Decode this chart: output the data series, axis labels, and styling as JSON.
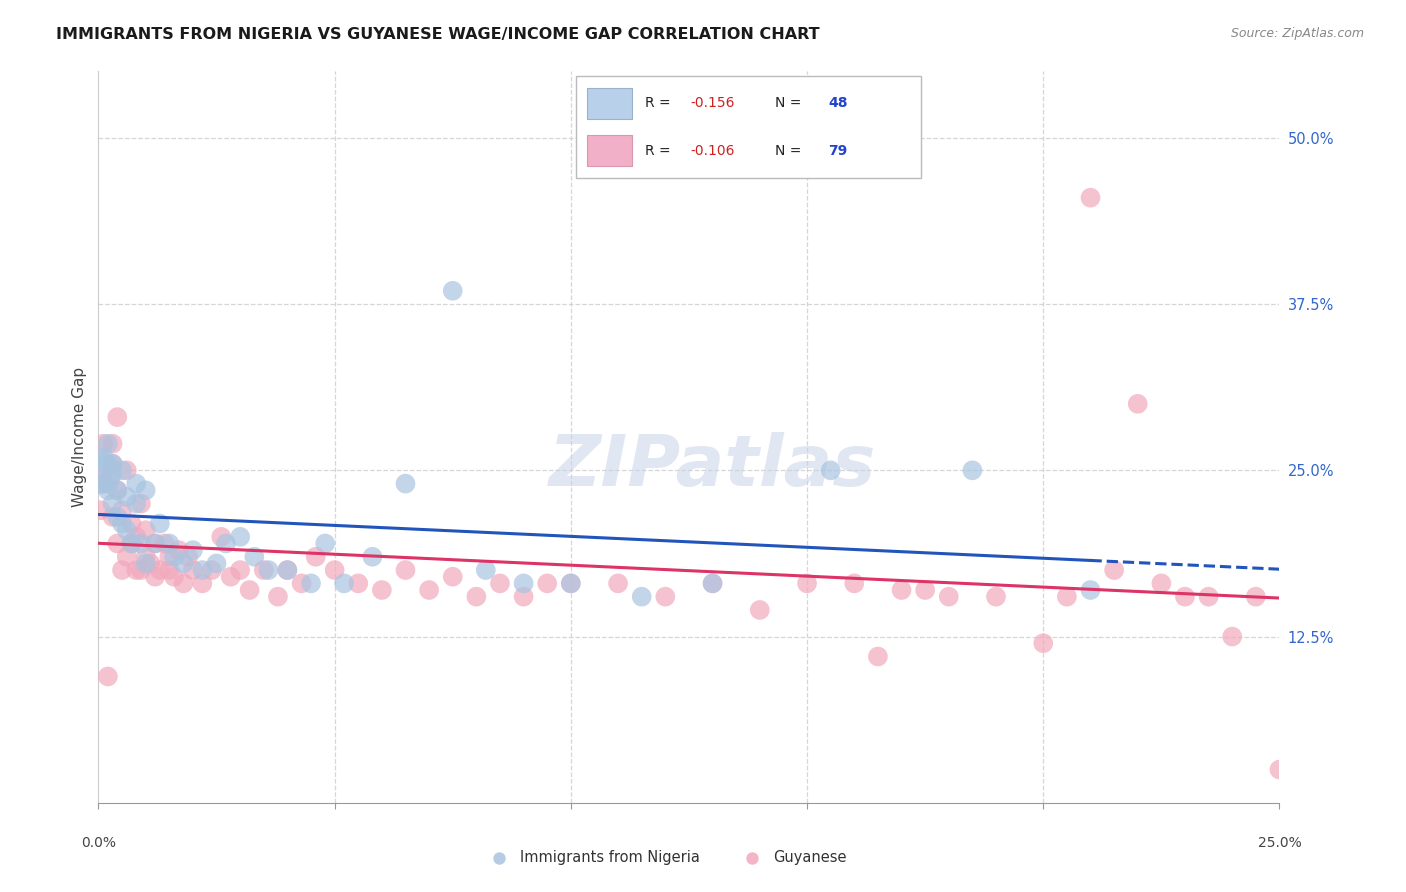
{
  "title": "IMMIGRANTS FROM NIGERIA VS GUYANESE WAGE/INCOME GAP CORRELATION CHART",
  "source": "Source: ZipAtlas.com",
  "ylabel": "Wage/Income Gap",
  "y_tick_positions": [
    0.125,
    0.25,
    0.375,
    0.5
  ],
  "y_tick_labels": [
    "12.5%",
    "25.0%",
    "37.5%",
    "50.0%"
  ],
  "xlim": [
    0,
    0.25
  ],
  "ylim": [
    0,
    0.55
  ],
  "blue_fill": "#a8c4e0",
  "pink_fill": "#f2a8bc",
  "blue_line": "#2255bb",
  "pink_line": "#dd3366",
  "R_nigeria": -0.156,
  "N_nigeria": 48,
  "R_guyanese": -0.106,
  "N_guyanese": 79,
  "legend_label_nigeria": "Immigrants from Nigeria",
  "legend_label_guyanese": "Guyanese",
  "watermark_text": "ZIPatlas",
  "nigeria_x": [
    0.0005,
    0.001,
    0.001,
    0.0015,
    0.002,
    0.002,
    0.0025,
    0.003,
    0.003,
    0.004,
    0.004,
    0.005,
    0.005,
    0.006,
    0.006,
    0.007,
    0.008,
    0.008,
    0.009,
    0.01,
    0.01,
    0.012,
    0.013,
    0.015,
    0.016,
    0.018,
    0.02,
    0.022,
    0.025,
    0.027,
    0.03,
    0.033,
    0.036,
    0.04,
    0.045,
    0.048,
    0.052,
    0.058,
    0.065,
    0.075,
    0.082,
    0.09,
    0.1,
    0.115,
    0.13,
    0.155,
    0.185,
    0.21
  ],
  "nigeria_y": [
    0.248,
    0.26,
    0.24,
    0.255,
    0.235,
    0.27,
    0.245,
    0.225,
    0.255,
    0.215,
    0.235,
    0.21,
    0.25,
    0.205,
    0.23,
    0.195,
    0.225,
    0.24,
    0.195,
    0.18,
    0.235,
    0.195,
    0.21,
    0.195,
    0.185,
    0.18,
    0.19,
    0.175,
    0.18,
    0.195,
    0.2,
    0.185,
    0.175,
    0.175,
    0.165,
    0.195,
    0.165,
    0.185,
    0.24,
    0.385,
    0.175,
    0.165,
    0.165,
    0.155,
    0.165,
    0.25,
    0.25,
    0.16
  ],
  "nigeria_size_large_idx": 0,
  "nigeria_size_large_val": 900,
  "nigeria_size_default": 200,
  "guyanese_x": [
    0.0005,
    0.001,
    0.001,
    0.002,
    0.002,
    0.003,
    0.003,
    0.003,
    0.004,
    0.004,
    0.004,
    0.005,
    0.005,
    0.006,
    0.006,
    0.007,
    0.007,
    0.008,
    0.008,
    0.009,
    0.009,
    0.01,
    0.01,
    0.011,
    0.012,
    0.012,
    0.013,
    0.014,
    0.015,
    0.015,
    0.016,
    0.017,
    0.018,
    0.019,
    0.02,
    0.022,
    0.024,
    0.026,
    0.028,
    0.03,
    0.032,
    0.035,
    0.038,
    0.04,
    0.043,
    0.046,
    0.05,
    0.055,
    0.06,
    0.065,
    0.07,
    0.075,
    0.08,
    0.085,
    0.09,
    0.095,
    0.1,
    0.11,
    0.12,
    0.13,
    0.14,
    0.15,
    0.16,
    0.165,
    0.17,
    0.175,
    0.18,
    0.19,
    0.2,
    0.205,
    0.21,
    0.215,
    0.22,
    0.225,
    0.23,
    0.235,
    0.24,
    0.245,
    0.25
  ],
  "guyanese_y": [
    0.22,
    0.245,
    0.27,
    0.24,
    0.095,
    0.255,
    0.215,
    0.27,
    0.235,
    0.195,
    0.29,
    0.175,
    0.22,
    0.185,
    0.25,
    0.195,
    0.21,
    0.175,
    0.2,
    0.175,
    0.225,
    0.185,
    0.205,
    0.18,
    0.17,
    0.195,
    0.175,
    0.195,
    0.185,
    0.175,
    0.17,
    0.19,
    0.165,
    0.185,
    0.175,
    0.165,
    0.175,
    0.2,
    0.17,
    0.175,
    0.16,
    0.175,
    0.155,
    0.175,
    0.165,
    0.185,
    0.175,
    0.165,
    0.16,
    0.175,
    0.16,
    0.17,
    0.155,
    0.165,
    0.155,
    0.165,
    0.165,
    0.165,
    0.155,
    0.165,
    0.145,
    0.165,
    0.165,
    0.11,
    0.16,
    0.16,
    0.155,
    0.155,
    0.12,
    0.155,
    0.455,
    0.175,
    0.3,
    0.165,
    0.155,
    0.155,
    0.125,
    0.155,
    0.025
  ],
  "guyanese_size_default": 200
}
